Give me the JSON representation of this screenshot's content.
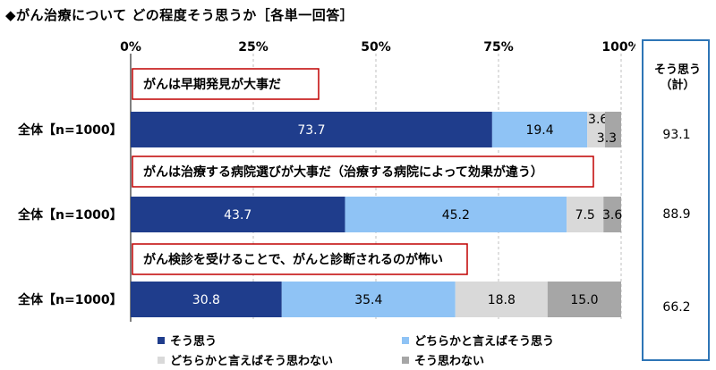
{
  "title": "◆がん治療について どの程度そう思うか［各単一回答］",
  "summary": {
    "title_line1": "そう思う",
    "title_line2": "（計）",
    "values": [
      "93.1",
      "88.9",
      "66.2"
    ]
  },
  "legend": [
    {
      "label": "そう思う",
      "color": "#1f3d8c"
    },
    {
      "label": "どちらかと言えばそう思う",
      "color": "#8fc3f5"
    },
    {
      "label": "どちらかと言えばそう思わない",
      "color": "#d9d9d9"
    },
    {
      "label": "そう思わない",
      "color": "#a6a6a6"
    }
  ],
  "chart_data": {
    "type": "bar",
    "orientation": "horizontal",
    "stacked": true,
    "xlim": [
      0,
      100
    ],
    "x_ticks": [
      "0%",
      "25%",
      "50%",
      "75%",
      "100%"
    ],
    "row_label": "全体【n=1000】",
    "groups": [
      {
        "question": "がんは早期発見が大事だ",
        "values": [
          73.7,
          19.4,
          3.6,
          3.3
        ],
        "labels": [
          "73.7",
          "19.4",
          "3.6",
          "3.3"
        ]
      },
      {
        "question": "がんは治療する病院選びが大事だ（治療する病院によって効果が違う）",
        "values": [
          43.7,
          45.2,
          7.5,
          3.6
        ],
        "labels": [
          "43.7",
          "45.2",
          "7.5",
          "3.6"
        ]
      },
      {
        "question": "がん検診を受けることで、がんと診断されるのが怖い",
        "values": [
          30.8,
          35.4,
          18.8,
          15.0
        ],
        "labels": [
          "30.8",
          "35.4",
          "18.8",
          "15.0"
        ]
      }
    ],
    "series": [
      {
        "name": "そう思う",
        "color": "#1f3d8c"
      },
      {
        "name": "どちらかと言えばそう思う",
        "color": "#8fc3f5"
      },
      {
        "name": "どちらかと言えばそう思わない",
        "color": "#d9d9d9"
      },
      {
        "name": "そう思わない",
        "color": "#a6a6a6"
      }
    ]
  }
}
